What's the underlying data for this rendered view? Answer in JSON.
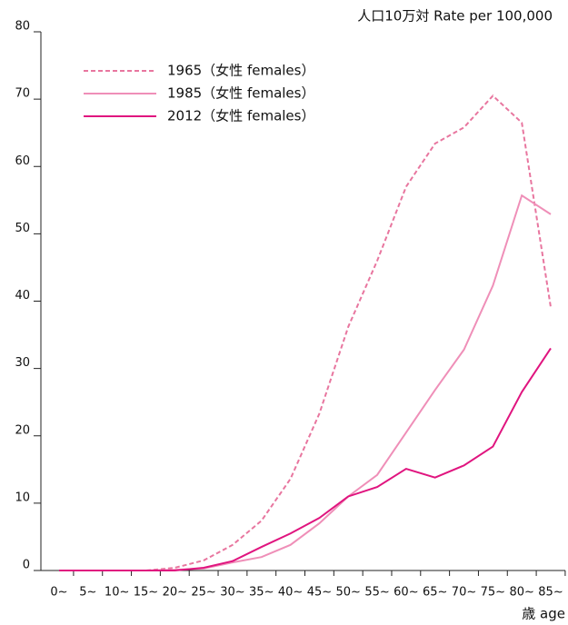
{
  "chart_data": {
    "type": "line",
    "y_label": "人口10万対  Rate per 100,000",
    "x_label": "歳 age",
    "categories": [
      "0~",
      "5~",
      "10~",
      "15~",
      "20~",
      "25~",
      "30~",
      "35~",
      "40~",
      "45~",
      "50~",
      "55~",
      "60~",
      "65~",
      "70~",
      "75~",
      "80~",
      "85~"
    ],
    "series": [
      {
        "name": "1965（女性 females）",
        "color": "#e8769f",
        "dash": true,
        "values": [
          0,
          0,
          0,
          0,
          0.4,
          1.5,
          3.8,
          7.4,
          13.6,
          23.3,
          36.2,
          46,
          57,
          63.4,
          65.8,
          70.5,
          66.5,
          39.1
        ]
      },
      {
        "name": "1985（女性 females）",
        "color": "#ef8fb8",
        "dash": false,
        "values": [
          0,
          0,
          0,
          0,
          0.1,
          0.3,
          1.2,
          2.0,
          3.8,
          7,
          11,
          14.2,
          20.5,
          26.8,
          32.8,
          42.3,
          55.7,
          52.9
        ]
      },
      {
        "name": "2012（女性 females）",
        "color": "#e0157f",
        "dash": false,
        "values": [
          0,
          0,
          0,
          0,
          0,
          0.4,
          1.4,
          3.5,
          5.5,
          7.8,
          11,
          12.4,
          15.1,
          13.8,
          15.6,
          18.4,
          26.5,
          33
        ]
      }
    ],
    "ylim": [
      0,
      80
    ],
    "yticks": [
      0,
      10,
      20,
      30,
      40,
      50,
      60,
      70,
      80
    ],
    "legend": "upper left"
  }
}
